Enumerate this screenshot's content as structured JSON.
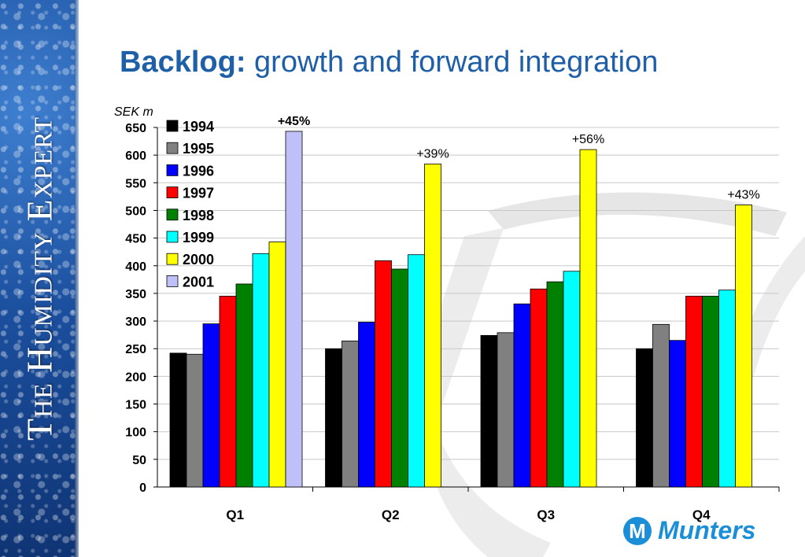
{
  "sidebar": {
    "brand_text": "The Humidity Expert"
  },
  "slide": {
    "title_bold": "Backlog:",
    "title_rest": " growth and forward integration"
  },
  "logo": {
    "text": "Munters",
    "mark": "M"
  },
  "chart_data": {
    "type": "bar",
    "unit_label": "SEK m",
    "categories": [
      "Q1",
      "Q2",
      "Q3",
      "Q4"
    ],
    "ylim": [
      0,
      650
    ],
    "yticks": [
      0,
      50,
      100,
      150,
      200,
      250,
      300,
      350,
      400,
      450,
      500,
      550,
      600,
      650
    ],
    "grid": true,
    "legend_position": "top-left, inside plot",
    "series": [
      {
        "name": "1994",
        "color": "#000000",
        "values": [
          242,
          250,
          274,
          250
        ]
      },
      {
        "name": "1995",
        "color": "#808080",
        "values": [
          240,
          264,
          279,
          294
        ]
      },
      {
        "name": "1996",
        "color": "#0000ff",
        "values": [
          295,
          298,
          331,
          265
        ]
      },
      {
        "name": "1997",
        "color": "#ff0000",
        "values": [
          345,
          409,
          358,
          345
        ]
      },
      {
        "name": "1998",
        "color": "#008000",
        "values": [
          367,
          394,
          371,
          345
        ]
      },
      {
        "name": "1999",
        "color": "#00ffff",
        "values": [
          422,
          420,
          390,
          356
        ]
      },
      {
        "name": "2000",
        "color": "#ffff00",
        "values": [
          443,
          584,
          610,
          510
        ]
      },
      {
        "name": "2001",
        "color": "#c0c0f8",
        "values": [
          643,
          null,
          null,
          null
        ]
      }
    ],
    "annotations": [
      {
        "text": "+45%",
        "category": "Q1",
        "series": "2001",
        "bold": true
      },
      {
        "text": "+39%",
        "category": "Q2",
        "series": "2000",
        "bold": false
      },
      {
        "text": "+56%",
        "category": "Q3",
        "series": "2000",
        "bold": false
      },
      {
        "text": "+43%",
        "category": "Q4",
        "series": "2000",
        "bold": false
      }
    ]
  }
}
